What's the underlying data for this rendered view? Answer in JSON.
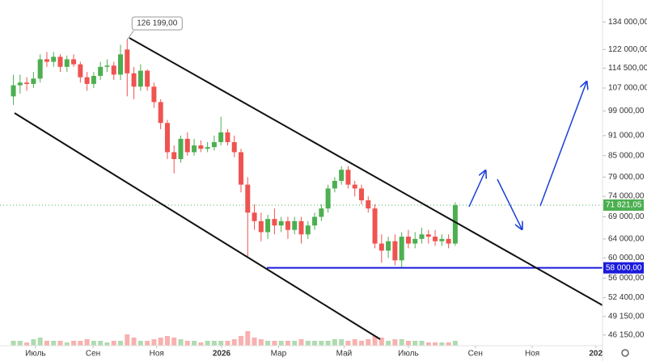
{
  "chart_data": {
    "type": "candlestick",
    "log_scale": true,
    "xlim": [
      -2,
      88
    ],
    "ylim": [
      44500,
      144400
    ],
    "yticks": [
      {
        "value": 134000,
        "label": "134 000,00"
      },
      {
        "value": 122000,
        "label": "122 000,00"
      },
      {
        "value": 114500,
        "label": "114 500,00"
      },
      {
        "value": 107000,
        "label": "107 000,00"
      },
      {
        "value": 99000,
        "label": "99 000,00"
      },
      {
        "value": 91000,
        "label": "91 000,00"
      },
      {
        "value": 85000,
        "label": "85 000,00"
      },
      {
        "value": 79000,
        "label": "79 000,00"
      },
      {
        "value": 74000,
        "label": "74 000,00"
      },
      {
        "value": 69000,
        "label": "69 000,00"
      },
      {
        "value": 64000,
        "label": "64 000,00"
      },
      {
        "value": 60000,
        "label": "60 000,00"
      },
      {
        "value": 56000,
        "label": "56 000,00"
      },
      {
        "value": 52400,
        "label": "52 400,00"
      },
      {
        "value": 49150,
        "label": "49 150,00"
      },
      {
        "value": 46150,
        "label": "46 150,00"
      }
    ],
    "xticks": [
      {
        "value": 3.3,
        "label": "Июль"
      },
      {
        "value": 11.9,
        "label": "Сен"
      },
      {
        "value": 21.4,
        "label": "Ноя"
      },
      {
        "value": 31.1,
        "label": "2026",
        "bold": true
      },
      {
        "value": 39.6,
        "label": "Мар"
      },
      {
        "value": 49.4,
        "label": "Май"
      },
      {
        "value": 59.0,
        "label": "Июль"
      },
      {
        "value": 69.0,
        "label": "Сен"
      },
      {
        "value": 77.5,
        "label": "Ноя"
      },
      {
        "value": 87.0,
        "label": "202",
        "bold": true
      }
    ],
    "up_color": "#4caf50",
    "down_color": "#ef5350",
    "candles": {
      "open": [
        104000,
        108000,
        109000,
        108500,
        110500,
        118000,
        117000,
        119000,
        115000,
        118000,
        116000,
        111000,
        108500,
        111500,
        115000,
        115500,
        112000,
        122000,
        112500,
        107500,
        113500,
        107500,
        102000,
        95000,
        86000,
        84000,
        90000,
        86000,
        88000,
        87000,
        87500,
        89000,
        92000,
        89000,
        86000,
        77000,
        70000,
        68000,
        65500,
        68500,
        67000,
        68000,
        66000,
        68000,
        65000,
        67000,
        69000,
        71000,
        76000,
        78000,
        81000,
        77000,
        76000,
        73000,
        71000,
        63000,
        61500,
        63500,
        59500,
        64500,
        63000,
        64000,
        65000,
        64500,
        63500,
        64000,
        63000
      ],
      "high": [
        112000,
        112000,
        111000,
        113000,
        120000,
        121000,
        121000,
        120000,
        119500,
        120000,
        117000,
        113000,
        113000,
        117000,
        118000,
        117000,
        124000,
        126199,
        115000,
        116000,
        114000,
        109000,
        103000,
        96000,
        88000,
        91000,
        92000,
        90000,
        89500,
        89000,
        91000,
        97000,
        93000,
        91000,
        87000,
        79000,
        72000,
        70000,
        69500,
        71000,
        69000,
        69000,
        69000,
        69000,
        68000,
        70000,
        72000,
        77000,
        79000,
        82000,
        82000,
        78000,
        77000,
        74000,
        72000,
        65000,
        64500,
        65000,
        65500,
        66000,
        65500,
        66500,
        66000,
        66000,
        65000,
        65000,
        72500
      ],
      "low": [
        101000,
        105000,
        106000,
        107000,
        109000,
        115000,
        115000,
        113000,
        113000,
        115000,
        109000,
        106000,
        107000,
        110000,
        113000,
        110000,
        110000,
        104000,
        103000,
        106000,
        106000,
        100000,
        93000,
        84000,
        80000,
        83000,
        85000,
        85000,
        86000,
        86000,
        86500,
        88000,
        88000,
        84500,
        75000,
        60000,
        66000,
        63500,
        64000,
        65000,
        65500,
        64000,
        65000,
        63000,
        64000,
        66000,
        68000,
        70000,
        75000,
        77000,
        76000,
        74000,
        72000,
        70000,
        62000,
        59000,
        60000,
        58500,
        58000,
        62000,
        62000,
        63000,
        63000,
        62500,
        62500,
        62000,
        62500
      ],
      "close": [
        108000,
        109000,
        108500,
        110500,
        118000,
        117000,
        119000,
        115000,
        118000,
        116000,
        111000,
        108500,
        111500,
        115000,
        115500,
        112000,
        120000,
        112500,
        107500,
        113500,
        107500,
        102000,
        95000,
        86000,
        84000,
        90000,
        86000,
        88000,
        87000,
        87500,
        89000,
        92000,
        89000,
        86000,
        77000,
        70000,
        68000,
        65500,
        68500,
        67000,
        68000,
        66000,
        68000,
        65000,
        67000,
        69000,
        71000,
        76000,
        78000,
        81000,
        77000,
        76000,
        73000,
        71000,
        63000,
        61500,
        63500,
        59500,
        64500,
        63000,
        64000,
        65000,
        64500,
        63500,
        64000,
        63000,
        71821.05
      ],
      "volume": [
        3,
        3,
        2,
        4,
        5,
        3,
        3,
        3,
        2,
        3,
        3,
        4,
        3,
        3,
        2,
        3,
        3,
        7,
        5,
        3,
        3,
        4,
        5,
        6,
        5,
        4,
        3,
        3,
        2,
        3,
        3,
        3,
        3,
        4,
        6,
        9,
        5,
        4,
        3,
        3,
        3,
        3,
        3,
        4,
        3,
        3,
        3,
        3,
        4,
        4,
        3,
        4,
        3,
        4,
        6,
        5,
        3,
        4,
        4,
        3,
        3,
        3,
        2,
        2,
        2,
        2,
        3
      ]
    },
    "last_price": {
      "value": 71821.05,
      "label": "71 821,05"
    },
    "level_line": {
      "value": 58000,
      "label": "58 000,00",
      "color": "#1a1adb"
    },
    "high_annotation": {
      "index": 17,
      "value": 126199,
      "label": "126 199,00"
    }
  }
}
